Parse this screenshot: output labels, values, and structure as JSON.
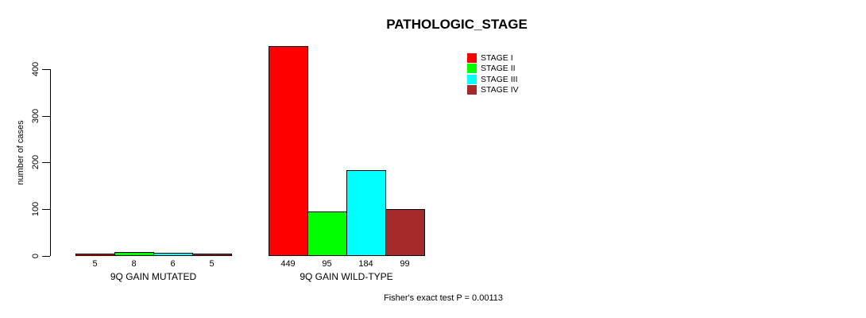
{
  "chart_data": {
    "type": "bar",
    "title": "PATHOLOGIC_STAGE",
    "ylabel": "number of cases",
    "xlabel": "",
    "ylim": [
      0,
      460
    ],
    "yticks": [
      0,
      100,
      200,
      300,
      400
    ],
    "grid": false,
    "legend_position": "top-right",
    "categories": [
      "9Q GAIN MUTATED",
      "9Q GAIN WILD-TYPE"
    ],
    "series": [
      {
        "name": "STAGE I",
        "color": "#ff0000",
        "values": [
          5,
          449
        ]
      },
      {
        "name": "STAGE II",
        "color": "#00ff00",
        "values": [
          8,
          95
        ]
      },
      {
        "name": "STAGE III",
        "color": "#00ffff",
        "values": [
          6,
          184
        ]
      },
      {
        "name": "STAGE IV",
        "color": "#a52a2a",
        "values": [
          5,
          99
        ]
      }
    ],
    "bar_value_labels": true,
    "footer": "Fisher's exact test P = 0.00113"
  }
}
